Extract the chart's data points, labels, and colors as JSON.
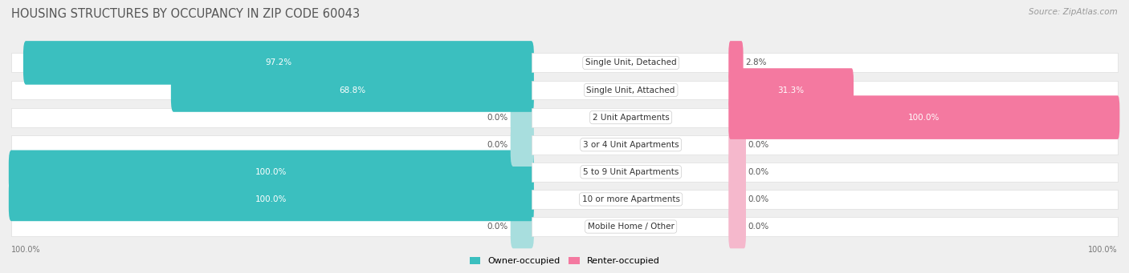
{
  "title": "HOUSING STRUCTURES BY OCCUPANCY IN ZIP CODE 60043",
  "source": "Source: ZipAtlas.com",
  "categories": [
    "Single Unit, Detached",
    "Single Unit, Attached",
    "2 Unit Apartments",
    "3 or 4 Unit Apartments",
    "5 to 9 Unit Apartments",
    "10 or more Apartments",
    "Mobile Home / Other"
  ],
  "owner_pct": [
    97.2,
    68.8,
    0.0,
    0.0,
    100.0,
    100.0,
    0.0
  ],
  "renter_pct": [
    2.8,
    31.3,
    100.0,
    0.0,
    0.0,
    0.0,
    0.0
  ],
  "owner_color": "#3bbfbf",
  "renter_color": "#f479a0",
  "owner_light": "#a8dede",
  "renter_light": "#f5b8cc",
  "bg_color": "#efefef",
  "row_bg_color": "#ffffff",
  "title_fontsize": 10.5,
  "source_fontsize": 7.5,
  "pct_fontsize": 7.5,
  "label_fontsize": 7.5,
  "legend_fontsize": 8
}
